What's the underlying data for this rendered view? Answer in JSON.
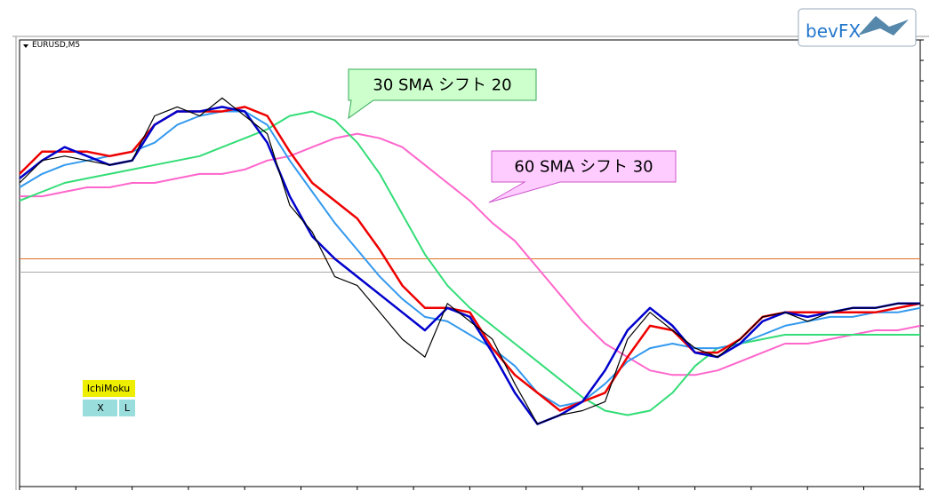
{
  "ui": {
    "symbol": "EURUSD,M5",
    "logo": "bevFX",
    "panel_title": "IchiMoku",
    "buttons": [
      "X",
      "L"
    ]
  },
  "chart_data": {
    "type": "line",
    "categories": [
      null,
      null,
      null,
      null,
      null,
      null,
      null,
      null,
      null,
      null,
      null,
      null,
      null,
      null,
      null,
      null,
      null,
      null,
      null,
      null,
      null,
      null,
      null,
      null,
      null,
      null,
      null,
      null,
      null,
      null,
      null,
      null,
      null,
      null,
      null,
      null,
      null,
      null,
      null,
      null,
      null
    ],
    "ylim": [
      0,
      100
    ],
    "series": [
      {
        "color": "#ff66cc",
        "values": [
          65,
          65,
          66,
          67,
          67,
          68,
          68,
          69,
          70,
          70,
          71,
          73,
          74,
          76,
          78,
          79,
          78,
          76,
          72,
          68,
          64,
          59,
          55,
          49,
          43,
          37,
          32,
          29,
          26,
          25,
          25,
          26,
          28,
          30,
          32,
          32,
          33,
          34,
          35,
          35,
          36
        ]
      },
      {
        "color": "#33dd77",
        "values": [
          64,
          66,
          68,
          69,
          70,
          71,
          72,
          73,
          74,
          76,
          78,
          80,
          83,
          84,
          82,
          77,
          70,
          61,
          52,
          45,
          40,
          36,
          32,
          28,
          24,
          20,
          17,
          16,
          17,
          21,
          27,
          31,
          32,
          33,
          34,
          34,
          34,
          34,
          34,
          34,
          34
        ]
      },
      {
        "color": "#3399ee",
        "values": [
          67,
          70,
          72,
          73,
          74,
          75,
          77,
          81,
          83,
          84,
          84,
          81,
          73,
          66,
          59,
          53,
          47,
          42,
          38,
          37,
          34,
          31,
          27,
          21,
          18,
          19,
          23,
          28,
          31,
          32,
          31,
          31,
          32,
          34,
          36,
          37,
          38,
          38,
          39,
          39,
          40
        ]
      },
      {
        "color": "#ee0000",
        "values": [
          70,
          75,
          75,
          75,
          74,
          75,
          81,
          84,
          84,
          84,
          85,
          83,
          75,
          68,
          64,
          60,
          53,
          45,
          40,
          40,
          39,
          31,
          25,
          21,
          17,
          19,
          21,
          29,
          36,
          35,
          30,
          30,
          33,
          38,
          39,
          39,
          39,
          39,
          39,
          40,
          41
        ]
      },
      {
        "color": "#0000cc",
        "values": [
          69,
          73,
          76,
          74,
          72,
          73,
          81,
          84,
          84,
          85,
          84,
          77,
          65,
          56,
          51,
          47,
          43,
          39,
          35,
          40,
          38,
          30,
          21,
          14,
          16,
          19,
          26,
          35,
          40,
          36,
          30,
          29,
          32,
          37,
          39,
          38,
          39,
          40,
          40,
          41,
          41
        ]
      },
      {
        "color": "#000000",
        "values": [
          68,
          73,
          74,
          73,
          72,
          73,
          83,
          85,
          83,
          87,
          83,
          79,
          63,
          57,
          47,
          45,
          39,
          33,
          29,
          41,
          37,
          33,
          23,
          14,
          16,
          17,
          19,
          33,
          39,
          35,
          31,
          29,
          33,
          38,
          39,
          37,
          39,
          40,
          40,
          41,
          41
        ]
      }
    ],
    "hlines": [
      {
        "value": 51,
        "color": "#e07020"
      },
      {
        "value": 48,
        "color": "#aaaaaa"
      }
    ],
    "annotations": [
      {
        "text": "30 SMA シフト 20",
        "color": "#ccffcc"
      },
      {
        "text": "60 SMA シフト 30",
        "color": "#ffccff"
      }
    ]
  }
}
